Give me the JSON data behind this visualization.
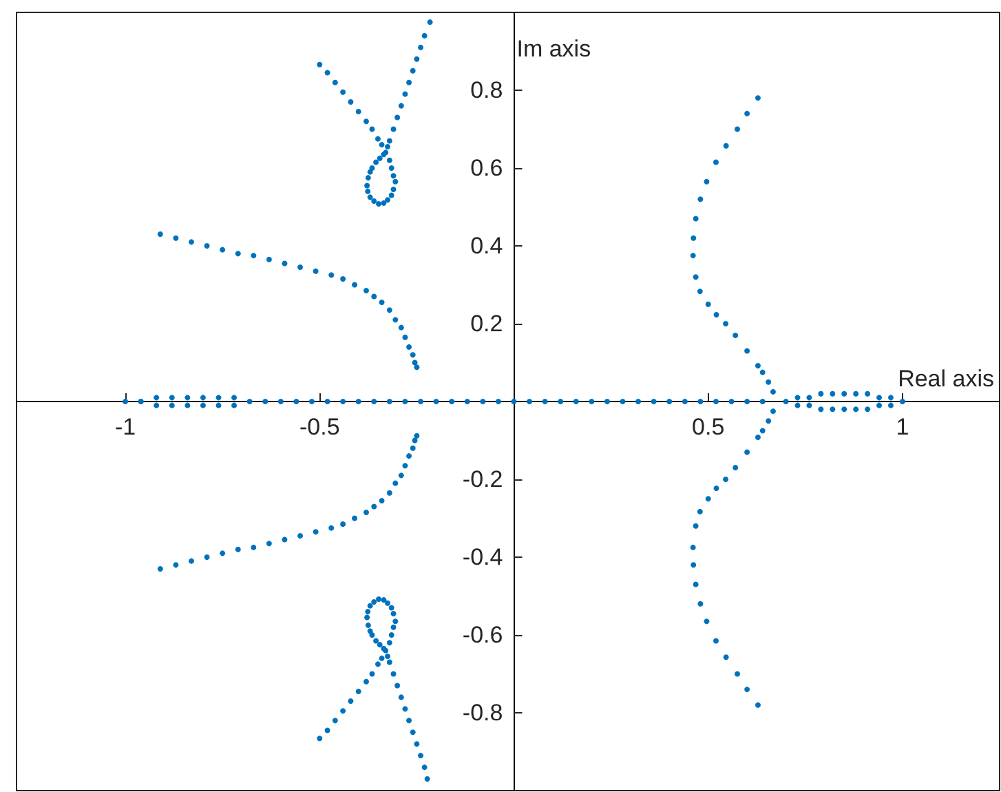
{
  "chart_data": {
    "type": "scatter",
    "xlabel": "Real axis",
    "ylabel": "Im axis",
    "marker": "circle",
    "grid": false,
    "xlim": [
      -1.28,
      1.25
    ],
    "xticks": [
      -1,
      -0.5,
      0.5,
      1
    ],
    "ylim": [
      -1,
      1
    ],
    "yticks": [
      -0.8,
      -0.6,
      -0.4,
      -0.2,
      0.2,
      0.4,
      0.6,
      0.8
    ],
    "series": [
      {
        "color": "#0072bd",
        "x": [
          -0.91,
          -0.87,
          -0.83,
          -0.79,
          -0.75,
          -0.71,
          -0.67,
          -0.63,
          -0.59,
          -0.55,
          -0.51,
          -0.47,
          -0.44,
          -0.41,
          -0.38,
          -0.36,
          -0.34,
          -0.32,
          -0.305,
          -0.29,
          -0.28,
          -0.27,
          -0.26,
          -0.255,
          -0.25
        ],
        "values": [
          0.43,
          0.42,
          0.41,
          0.4,
          0.39,
          0.38,
          0.375,
          0.365,
          0.355,
          0.345,
          0.335,
          0.325,
          0.315,
          0.3,
          0.285,
          0.27,
          0.255,
          0.235,
          0.21,
          0.19,
          0.165,
          0.14,
          0.12,
          0.1,
          0.088
        ]
      },
      {
        "color": "#0072bd",
        "x": [
          -0.91,
          -0.87,
          -0.83,
          -0.79,
          -0.75,
          -0.71,
          -0.67,
          -0.63,
          -0.59,
          -0.55,
          -0.51,
          -0.47,
          -0.44,
          -0.41,
          -0.38,
          -0.36,
          -0.34,
          -0.32,
          -0.305,
          -0.29,
          -0.28,
          -0.27,
          -0.26,
          -0.255,
          -0.25
        ],
        "values": [
          -0.43,
          -0.42,
          -0.41,
          -0.4,
          -0.39,
          -0.38,
          -0.375,
          -0.365,
          -0.355,
          -0.345,
          -0.335,
          -0.325,
          -0.315,
          -0.3,
          -0.285,
          -0.27,
          -0.255,
          -0.235,
          -0.21,
          -0.19,
          -0.165,
          -0.14,
          -0.12,
          -0.1,
          -0.088
        ]
      },
      {
        "color": "#0072bd",
        "x": [
          -0.5,
          -0.48,
          -0.46,
          -0.44,
          -0.42,
          -0.4,
          -0.38,
          -0.365,
          -0.35,
          -0.34,
          -0.33,
          -0.32,
          -0.315,
          -0.31,
          -0.305,
          -0.31,
          -0.315,
          -0.325,
          -0.335,
          -0.348,
          -0.36,
          -0.37,
          -0.376,
          -0.378,
          -0.375,
          -0.37,
          -0.365,
          -0.355,
          -0.345,
          -0.335,
          -0.325,
          -0.32,
          -0.31,
          -0.3,
          -0.29,
          -0.28,
          -0.27,
          -0.26,
          -0.25,
          -0.24,
          -0.23,
          -0.216
        ],
        "values": [
          0.866,
          0.845,
          0.82,
          0.795,
          0.77,
          0.745,
          0.72,
          0.7,
          0.675,
          0.66,
          0.64,
          0.62,
          0.6,
          0.58,
          0.565,
          0.545,
          0.53,
          0.518,
          0.51,
          0.508,
          0.515,
          0.525,
          0.54,
          0.555,
          0.575,
          0.59,
          0.6,
          0.615,
          0.625,
          0.635,
          0.655,
          0.67,
          0.7,
          0.73,
          0.76,
          0.79,
          0.82,
          0.85,
          0.88,
          0.91,
          0.94,
          0.975
        ]
      },
      {
        "color": "#0072bd",
        "x": [
          -0.5,
          -0.48,
          -0.46,
          -0.44,
          -0.42,
          -0.4,
          -0.38,
          -0.365,
          -0.35,
          -0.34,
          -0.33,
          -0.32,
          -0.315,
          -0.31,
          -0.305,
          -0.31,
          -0.315,
          -0.325,
          -0.335,
          -0.348,
          -0.36,
          -0.37,
          -0.376,
          -0.378,
          -0.375,
          -0.37,
          -0.365,
          -0.355,
          -0.345,
          -0.335,
          -0.325,
          -0.32,
          -0.31,
          -0.3,
          -0.29,
          -0.28,
          -0.27,
          -0.26,
          -0.25,
          -0.24,
          -0.23,
          -0.223
        ],
        "values": [
          -0.866,
          -0.845,
          -0.82,
          -0.795,
          -0.77,
          -0.745,
          -0.72,
          -0.7,
          -0.675,
          -0.66,
          -0.64,
          -0.62,
          -0.6,
          -0.58,
          -0.565,
          -0.545,
          -0.53,
          -0.518,
          -0.51,
          -0.508,
          -0.515,
          -0.525,
          -0.54,
          -0.555,
          -0.575,
          -0.59,
          -0.6,
          -0.615,
          -0.625,
          -0.635,
          -0.655,
          -0.67,
          -0.7,
          -0.73,
          -0.76,
          -0.79,
          -0.82,
          -0.85,
          -0.88,
          -0.91,
          -0.94,
          -0.97
        ]
      },
      {
        "color": "#0072bd",
        "x": [
          0.667,
          0.655,
          0.64,
          0.628,
          0.6,
          0.57,
          0.545,
          0.521,
          0.5,
          0.479,
          0.468,
          0.461,
          0.462,
          0.468,
          0.48,
          0.496,
          0.52,
          0.546,
          0.575,
          0.6,
          0.628
        ],
        "values": [
          0.025,
          0.05,
          0.075,
          0.092,
          0.13,
          0.17,
          0.2,
          0.223,
          0.25,
          0.283,
          0.32,
          0.375,
          0.42,
          0.47,
          0.52,
          0.565,
          0.615,
          0.657,
          0.7,
          0.74,
          0.78
        ]
      },
      {
        "color": "#0072bd",
        "x": [
          0.667,
          0.655,
          0.64,
          0.628,
          0.6,
          0.57,
          0.545,
          0.521,
          0.5,
          0.479,
          0.468,
          0.461,
          0.462,
          0.468,
          0.48,
          0.496,
          0.52,
          0.546,
          0.575,
          0.6,
          0.628
        ],
        "values": [
          -0.025,
          -0.05,
          -0.075,
          -0.092,
          -0.13,
          -0.17,
          -0.2,
          -0.223,
          -0.25,
          -0.283,
          -0.32,
          -0.375,
          -0.42,
          -0.47,
          -0.52,
          -0.565,
          -0.615,
          -0.657,
          -0.7,
          -0.74,
          -0.78
        ]
      },
      {
        "color": "#0072bd",
        "x": [
          -1,
          -0.96,
          -0.92,
          -0.88,
          -0.84,
          -0.8,
          -0.76,
          -0.72,
          -0.68,
          -0.96,
          -0.92,
          -0.88,
          -0.84,
          -0.8,
          -0.76,
          -0.72,
          -0.64,
          -0.6,
          -0.56,
          -0.52,
          -0.48,
          -0.44,
          -0.4,
          -0.36,
          -0.32,
          -0.28,
          -0.24,
          -0.2,
          -0.16,
          -0.12,
          -0.08,
          -0.04,
          0,
          0.04,
          0.08,
          0.12,
          0.16,
          0.2,
          0.24,
          0.28,
          0.32,
          0.36,
          0.4,
          0.44,
          0.48,
          0.52,
          0.56,
          0.6,
          0.64,
          0.7,
          0.73,
          0.76,
          0.79,
          0.82,
          0.85,
          0.88,
          0.91,
          0.94,
          0.97,
          1,
          0.73,
          0.76,
          0.79,
          0.82,
          0.85,
          0.88,
          0.91,
          0.94,
          0.97
        ],
        "values": [
          0,
          0,
          0.01,
          0.01,
          0.01,
          0.01,
          0.01,
          0.01,
          0,
          0,
          -0.01,
          -0.01,
          -0.01,
          -0.01,
          -0.01,
          -0.01,
          0,
          0,
          0,
          0,
          0,
          0,
          0,
          0,
          0,
          0,
          0,
          0,
          0,
          0,
          0,
          0,
          0,
          0,
          0,
          0,
          0,
          0,
          0,
          0,
          0,
          0,
          0,
          0,
          0,
          0,
          0,
          0,
          0,
          0,
          0.01,
          0.01,
          0.02,
          0.02,
          0.02,
          0.02,
          0.02,
          0.01,
          0.01,
          0,
          -0.01,
          -0.01,
          -0.02,
          -0.02,
          -0.02,
          -0.02,
          -0.02,
          -0.01,
          -0.01
        ]
      }
    ]
  }
}
